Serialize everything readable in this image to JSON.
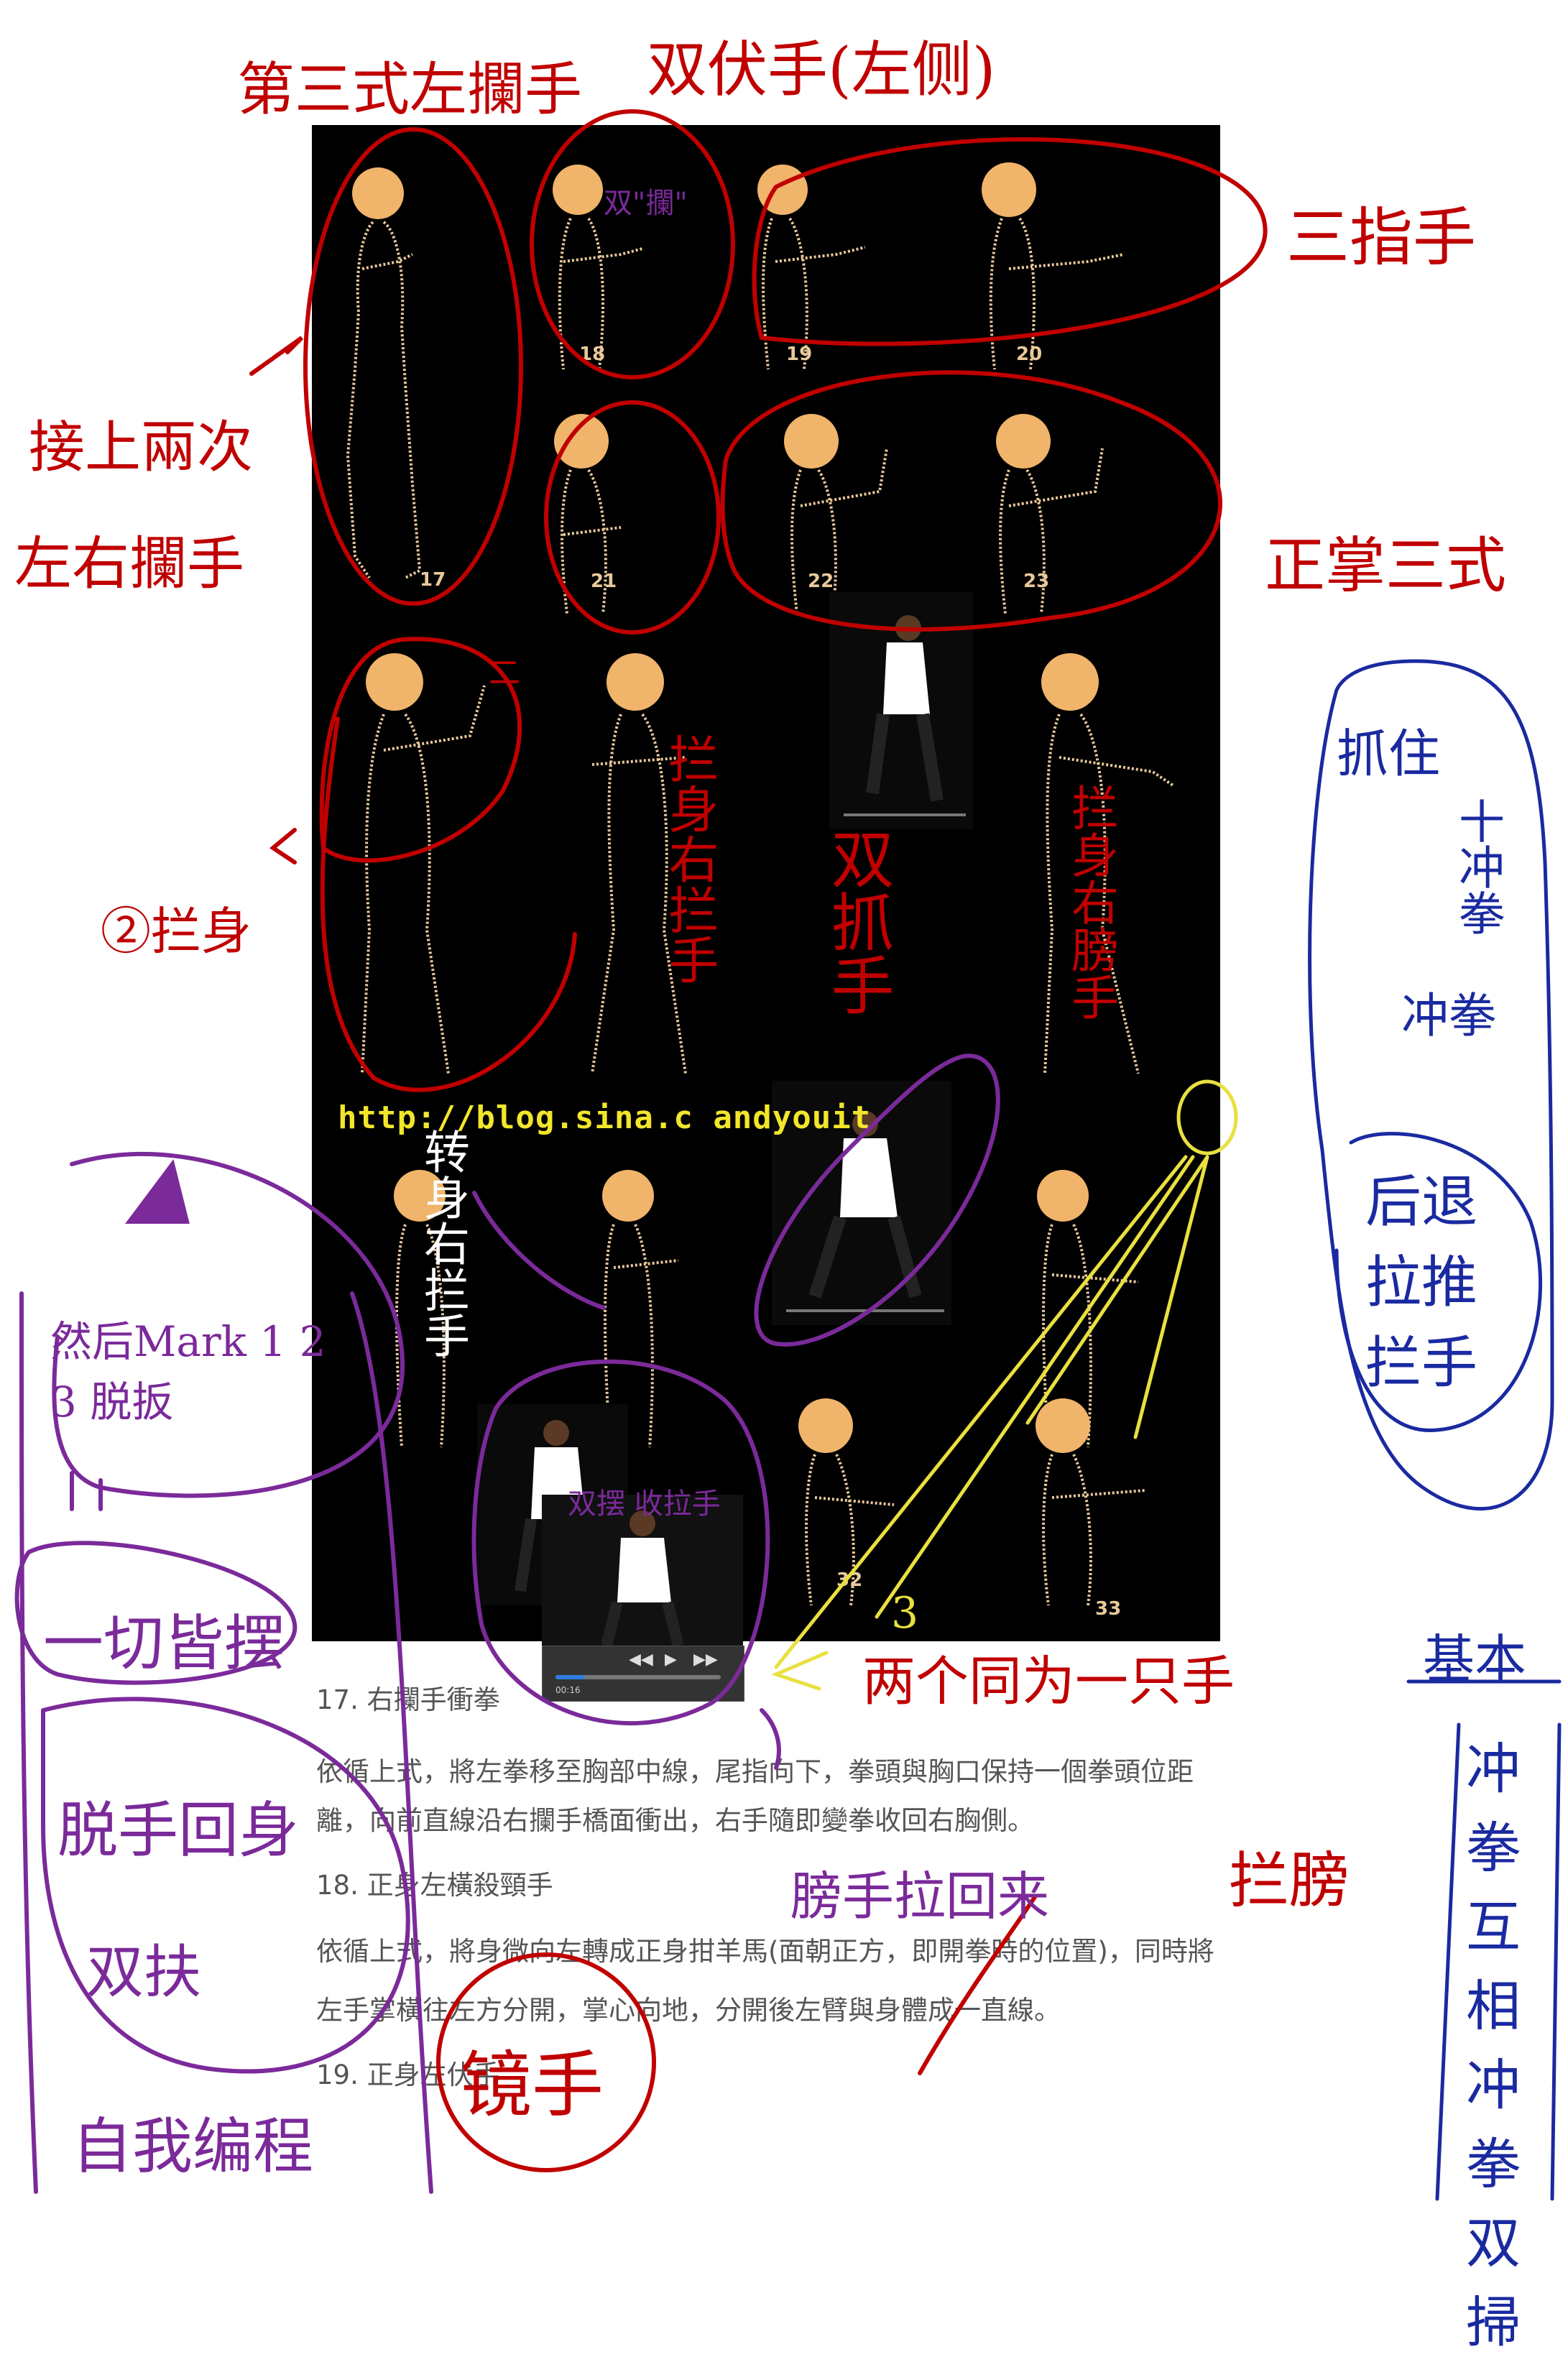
{
  "poster": {
    "figure_numbers": [
      "17",
      "18",
      "19",
      "20",
      "21",
      "22",
      "23",
      "32",
      "33"
    ],
    "watermark_url": "http://blog.sina.c     andyouit"
  },
  "video_player": {
    "play_icon": "play-icon",
    "rewind_icon": "rewind-icon",
    "forward_icon": "fast-forward-icon",
    "time": "00:16",
    "progress": 0.18
  },
  "article": {
    "lines": [
      "17. 右攔手衝拳",
      "依循上式，將左拳移至胸部中線，尾指向下，拳頭與胸口保持一個拳頭位距",
      "離，向前直線沿右攔手橋面衝出，右手隨即變拳收回右胸側。",
      "18. 正身左橫殺頸手",
      "依循上式，將身微向左轉成正身拑羊馬(面朝正方，即開拳時的位置)，同時將",
      "左手掌橫往左方分開，掌心向地，分開後左臂與身體成一直線。",
      "19. 正身左伏手"
    ]
  },
  "annotations": {
    "red": {
      "top_left": "第三式左攔手",
      "top_center": "双伏手(左侧)",
      "double_bracket": "双\"攔\"",
      "right_top": "三指手",
      "left_mid_1": "接上兩次",
      "left_mid_2": "左右攔手",
      "right_mid": "正掌三式",
      "small_mark": "二",
      "left_lower": "②拦身",
      "col2": "拦身右拦手",
      "col3": "双抓手",
      "col4": "拦身右膀手",
      "bottom_mid_1": "膀手拉回来",
      "bottom_mid_2": "拦膀",
      "bottom_circle": "镜手"
    },
    "yellow": {
      "numbers": "3",
      "text": "两个同为一只手"
    },
    "white": {
      "text": "转身右拦手"
    },
    "purple": {
      "top_left": "然后Mark 1 2 3 脱扳",
      "middle_left": "一切皆摆",
      "bottom_left": "脱手回身",
      "bottom_left_2": "双扶",
      "bottom_left_3": "自我编程",
      "over_video": "双摆 收拉手"
    },
    "blue": {
      "top": "抓住",
      "mid1": "十冲拳",
      "mid2": "冲拳",
      "circle": "后退 拉推 拦手",
      "box_title": "基本",
      "box_body": "冲拳 互相 冲拳 双掃"
    }
  }
}
